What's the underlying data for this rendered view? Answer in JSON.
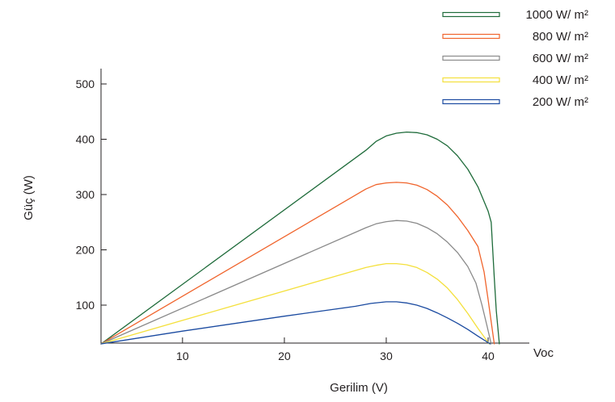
{
  "chart_data": {
    "type": "line",
    "title": "",
    "xlabel": "Gerilim (V)",
    "ylabel": "Güç (W)",
    "x_end_label": "Voc",
    "xlim": [
      2,
      41.5
    ],
    "ylim": [
      30,
      530
    ],
    "x_ticks": [
      10,
      20,
      30,
      40
    ],
    "y_ticks": [
      100,
      200,
      300,
      400,
      500
    ],
    "grid": false,
    "legend_position": "top-right",
    "series": [
      {
        "name": "1000 W/ m²",
        "color": "#1e6b3a",
        "x": [
          2,
          28,
          29,
          30,
          31,
          32,
          33,
          34,
          35,
          36,
          37,
          38,
          39,
          40,
          40.3,
          40.6,
          40.8,
          41.1
        ],
        "y": [
          30,
          380,
          396,
          406,
          411,
          413,
          412,
          408,
          400,
          388,
          370,
          346,
          314,
          270,
          250,
          150,
          90,
          30
        ]
      },
      {
        "name": "800 W/ m²",
        "color": "#f0642c",
        "x": [
          2,
          28,
          29,
          30,
          31,
          32,
          33,
          34,
          35,
          36,
          37,
          38,
          39,
          39.6,
          40.0,
          40.3,
          40.6
        ],
        "y": [
          30,
          310,
          318,
          321,
          322,
          321,
          317,
          309,
          297,
          281,
          260,
          235,
          206,
          160,
          110,
          70,
          30
        ]
      },
      {
        "name": "600 W/ m²",
        "color": "#8a8a8a",
        "x": [
          2,
          28,
          29,
          30,
          31,
          32,
          33,
          34,
          35,
          36,
          37,
          38,
          38.8,
          39.4,
          39.9,
          40.3
        ],
        "y": [
          30,
          240,
          247,
          251,
          253,
          252,
          248,
          240,
          229,
          214,
          195,
          170,
          140,
          100,
          62,
          30
        ]
      },
      {
        "name": "400 W/ m²",
        "color": "#f4e03c",
        "x": [
          2,
          28,
          29,
          30,
          31,
          32,
          33,
          34,
          35,
          36,
          37,
          38,
          39,
          40.1
        ],
        "y": [
          30,
          168,
          172,
          175,
          175,
          173,
          168,
          159,
          147,
          131,
          110,
          85,
          58,
          30
        ]
      },
      {
        "name": "200 W/ m²",
        "color": "#1a4aa0",
        "x": [
          2,
          10,
          20,
          27,
          28.5,
          30,
          31,
          32,
          33,
          34,
          35,
          36,
          37,
          38,
          39,
          40.2
        ],
        "y": [
          30,
          53,
          80,
          98,
          103,
          106,
          106,
          104,
          100,
          94,
          86,
          77,
          67,
          56,
          44,
          30
        ]
      }
    ]
  }
}
